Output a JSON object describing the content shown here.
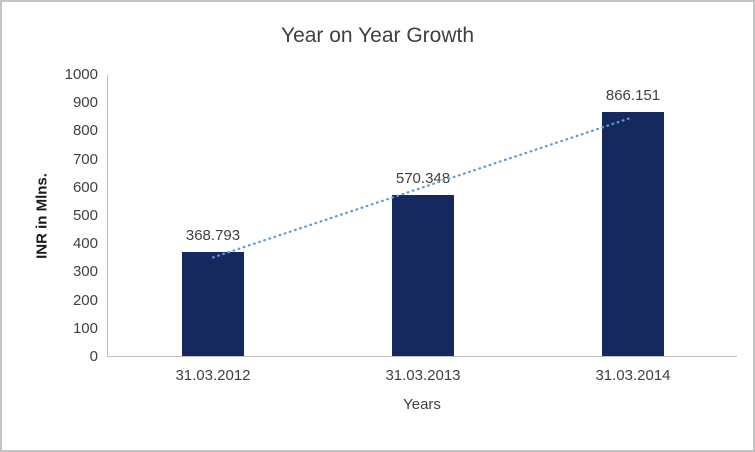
{
  "chart_data": {
    "type": "bar",
    "title": "Year on Year Growth",
    "categories": [
      "31.03.2012",
      "31.03.2013",
      "31.03.2014"
    ],
    "values": [
      368.793,
      570.348,
      866.151
    ],
    "data_labels": [
      "368.793",
      "570.348",
      "866.151"
    ],
    "xlabel": "Years",
    "ylabel": "INR in Mlns.",
    "ylim": [
      0,
      1000
    ],
    "ytick_step": 100,
    "grid": false,
    "legend": "none",
    "bar_color": "#16295e",
    "axis_color": "#bfbfbf",
    "text_color": "#404040",
    "trendline": {
      "type": "linear",
      "style": "dotted",
      "color": "#5b9bd5"
    }
  }
}
